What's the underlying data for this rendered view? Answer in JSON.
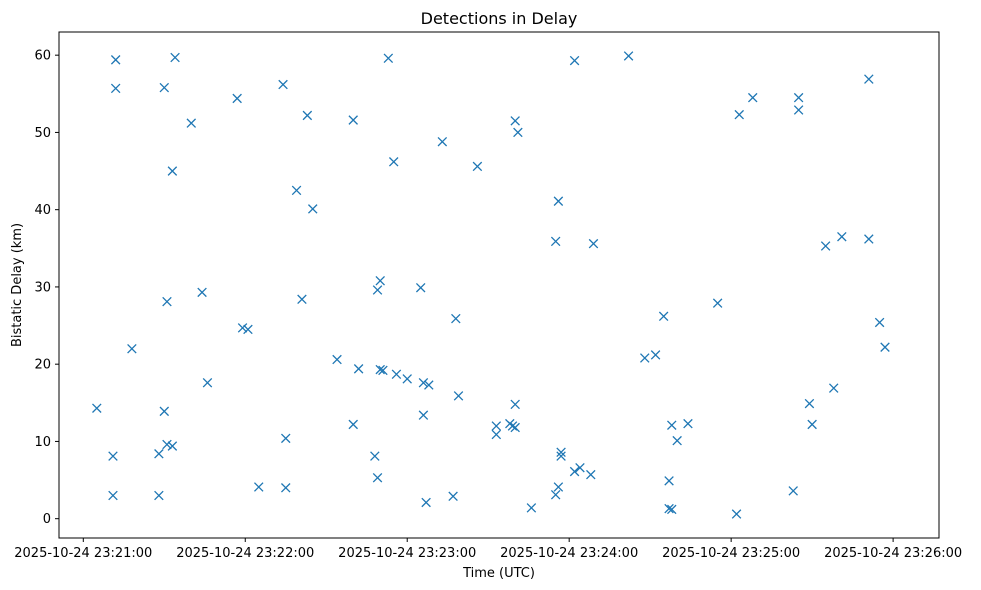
{
  "chart_data": {
    "type": "scatter",
    "title": "Detections in Delay",
    "xlabel": "Time (UTC)",
    "ylabel": "Bistatic Delay (km)",
    "x_unit": "seconds after 2025-10-24 23:21:00",
    "xlim": [
      -9,
      317
    ],
    "ylim": [
      -2.5,
      63
    ],
    "grid": false,
    "marker": "x",
    "color": "#1f77b4",
    "x_ticks": [
      {
        "value": 0,
        "label": "2025-10-24 23:21:00"
      },
      {
        "value": 60,
        "label": "2025-10-24 23:22:00"
      },
      {
        "value": 120,
        "label": "2025-10-24 23:23:00"
      },
      {
        "value": 180,
        "label": "2025-10-24 23:24:00"
      },
      {
        "value": 240,
        "label": "2025-10-24 23:25:00"
      },
      {
        "value": 300,
        "label": "2025-10-24 23:26:00"
      }
    ],
    "y_ticks": [
      {
        "value": 0,
        "label": "0"
      },
      {
        "value": 10,
        "label": "10"
      },
      {
        "value": 20,
        "label": "20"
      },
      {
        "value": 30,
        "label": "30"
      },
      {
        "value": 40,
        "label": "40"
      },
      {
        "value": 50,
        "label": "50"
      },
      {
        "value": 60,
        "label": "60"
      }
    ],
    "points": [
      {
        "x": 5,
        "y": 14.3
      },
      {
        "x": 11,
        "y": 8.1
      },
      {
        "x": 11,
        "y": 3.0
      },
      {
        "x": 12,
        "y": 59.4
      },
      {
        "x": 12,
        "y": 55.7
      },
      {
        "x": 18,
        "y": 22.0
      },
      {
        "x": 28,
        "y": 8.4
      },
      {
        "x": 28,
        "y": 3.0
      },
      {
        "x": 30,
        "y": 55.8
      },
      {
        "x": 30,
        "y": 13.9
      },
      {
        "x": 31,
        "y": 28.1
      },
      {
        "x": 31,
        "y": 9.6
      },
      {
        "x": 33,
        "y": 9.4
      },
      {
        "x": 33,
        "y": 45.0
      },
      {
        "x": 34,
        "y": 59.7
      },
      {
        "x": 40,
        "y": 51.2
      },
      {
        "x": 44,
        "y": 29.3
      },
      {
        "x": 46,
        "y": 17.6
      },
      {
        "x": 57,
        "y": 54.4
      },
      {
        "x": 59,
        "y": 24.7
      },
      {
        "x": 61,
        "y": 24.5
      },
      {
        "x": 65,
        "y": 4.1
      },
      {
        "x": 74,
        "y": 56.2
      },
      {
        "x": 75,
        "y": 10.4
      },
      {
        "x": 75,
        "y": 4.0
      },
      {
        "x": 79,
        "y": 42.5
      },
      {
        "x": 81,
        "y": 28.4
      },
      {
        "x": 83,
        "y": 52.2
      },
      {
        "x": 85,
        "y": 40.1
      },
      {
        "x": 94,
        "y": 20.6
      },
      {
        "x": 100,
        "y": 51.6
      },
      {
        "x": 100,
        "y": 12.2
      },
      {
        "x": 102,
        "y": 19.4
      },
      {
        "x": 108,
        "y": 8.1
      },
      {
        "x": 109,
        "y": 5.3
      },
      {
        "x": 109,
        "y": 29.6
      },
      {
        "x": 110,
        "y": 30.8
      },
      {
        "x": 110,
        "y": 19.3
      },
      {
        "x": 111,
        "y": 19.2
      },
      {
        "x": 113,
        "y": 59.6
      },
      {
        "x": 115,
        "y": 46.2
      },
      {
        "x": 116,
        "y": 18.7
      },
      {
        "x": 120,
        "y": 18.1
      },
      {
        "x": 125,
        "y": 29.9
      },
      {
        "x": 126,
        "y": 13.4
      },
      {
        "x": 126,
        "y": 17.6
      },
      {
        "x": 127,
        "y": 2.1
      },
      {
        "x": 128,
        "y": 17.3
      },
      {
        "x": 133,
        "y": 48.8
      },
      {
        "x": 137,
        "y": 2.9
      },
      {
        "x": 138,
        "y": 25.9
      },
      {
        "x": 139,
        "y": 15.9
      },
      {
        "x": 146,
        "y": 45.6
      },
      {
        "x": 153,
        "y": 12.0
      },
      {
        "x": 153,
        "y": 10.9
      },
      {
        "x": 158,
        "y": 12.3
      },
      {
        "x": 159,
        "y": 12.0
      },
      {
        "x": 160,
        "y": 11.8
      },
      {
        "x": 160,
        "y": 14.8
      },
      {
        "x": 160,
        "y": 51.5
      },
      {
        "x": 161,
        "y": 50.0
      },
      {
        "x": 166,
        "y": 1.4
      },
      {
        "x": 175,
        "y": 35.9
      },
      {
        "x": 175,
        "y": 3.1
      },
      {
        "x": 176,
        "y": 4.1
      },
      {
        "x": 176,
        "y": 41.1
      },
      {
        "x": 177,
        "y": 8.6
      },
      {
        "x": 177,
        "y": 8.1
      },
      {
        "x": 182,
        "y": 6.1
      },
      {
        "x": 182,
        "y": 59.3
      },
      {
        "x": 184,
        "y": 6.6
      },
      {
        "x": 188,
        "y": 5.7
      },
      {
        "x": 189,
        "y": 35.6
      },
      {
        "x": 202,
        "y": 59.9
      },
      {
        "x": 208,
        "y": 20.8
      },
      {
        "x": 212,
        "y": 21.2
      },
      {
        "x": 215,
        "y": 26.2
      },
      {
        "x": 217,
        "y": 4.9
      },
      {
        "x": 217,
        "y": 1.3
      },
      {
        "x": 218,
        "y": 1.2
      },
      {
        "x": 218,
        "y": 12.1
      },
      {
        "x": 220,
        "y": 10.1
      },
      {
        "x": 224,
        "y": 12.3
      },
      {
        "x": 235,
        "y": 27.9
      },
      {
        "x": 242,
        "y": 0.6
      },
      {
        "x": 243,
        "y": 52.3
      },
      {
        "x": 248,
        "y": 54.5
      },
      {
        "x": 263,
        "y": 3.6
      },
      {
        "x": 265,
        "y": 54.5
      },
      {
        "x": 265,
        "y": 52.9
      },
      {
        "x": 269,
        "y": 14.9
      },
      {
        "x": 270,
        "y": 12.2
      },
      {
        "x": 275,
        "y": 35.3
      },
      {
        "x": 278,
        "y": 16.9
      },
      {
        "x": 281,
        "y": 36.5
      },
      {
        "x": 291,
        "y": 56.9
      },
      {
        "x": 291,
        "y": 36.2
      },
      {
        "x": 295,
        "y": 25.4
      },
      {
        "x": 297,
        "y": 22.2
      }
    ]
  }
}
